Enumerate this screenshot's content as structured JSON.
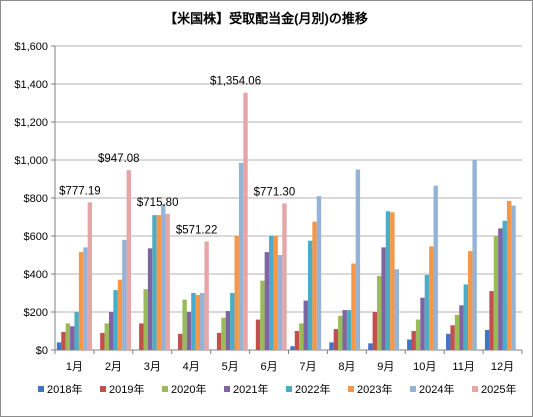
{
  "chart_data": {
    "type": "bar",
    "title": "【米国株】受取配当金(月別)の推移",
    "categories": [
      "1月",
      "2月",
      "3月",
      "4月",
      "5月",
      "6月",
      "7月",
      "8月",
      "9月",
      "10月",
      "11月",
      "12月"
    ],
    "y_ticks": [
      "$0",
      "$200",
      "$400",
      "$600",
      "$800",
      "$1,000",
      "$1,200",
      "$1,400",
      "$1,600"
    ],
    "ylim": [
      0,
      1600
    ],
    "y_step": 200,
    "grid": true,
    "legend_position": "bottom",
    "series": [
      {
        "name": "2018年",
        "color": "#4472c4",
        "values": [
          40,
          0,
          0,
          0,
          0,
          0,
          20,
          40,
          35,
          55,
          85,
          105
        ]
      },
      {
        "name": "2019年",
        "color": "#c0504d",
        "values": [
          95,
          90,
          140,
          85,
          90,
          160,
          100,
          110,
          200,
          100,
          130,
          310
        ]
      },
      {
        "name": "2020年",
        "color": "#9bbb59",
        "values": [
          140,
          140,
          320,
          265,
          170,
          365,
          140,
          180,
          390,
          160,
          185,
          600
        ]
      },
      {
        "name": "2021年",
        "color": "#8064a2",
        "values": [
          125,
          200,
          535,
          200,
          205,
          515,
          260,
          210,
          540,
          275,
          235,
          640
        ]
      },
      {
        "name": "2022年",
        "color": "#4bacc6",
        "values": [
          200,
          315,
          710,
          300,
          300,
          600,
          575,
          210,
          730,
          395,
          345,
          680
        ]
      },
      {
        "name": "2023年",
        "color": "#f79646",
        "values": [
          515,
          370,
          710,
          290,
          600,
          600,
          675,
          455,
          725,
          545,
          520,
          785
        ]
      },
      {
        "name": "2024年",
        "color": "#95b3d7",
        "values": [
          540,
          580,
          770,
          300,
          985,
          500,
          810,
          950,
          425,
          865,
          1000,
          760
        ]
      },
      {
        "name": "2025年",
        "color": "#e6a6a8",
        "values": [
          777.19,
          947.08,
          715.8,
          571.22,
          1354.06,
          771.3,
          null,
          null,
          null,
          null,
          null,
          null
        ]
      }
    ],
    "data_labels": [
      {
        "category_index": 0,
        "series_index": 7,
        "text": "$777.19"
      },
      {
        "category_index": 1,
        "series_index": 7,
        "text": "$947.08"
      },
      {
        "category_index": 2,
        "series_index": 7,
        "text": "$715.80"
      },
      {
        "category_index": 3,
        "series_index": 7,
        "text": "$571.22"
      },
      {
        "category_index": 4,
        "series_index": 7,
        "text": "$1,354.06"
      },
      {
        "category_index": 5,
        "series_index": 7,
        "text": "$771.30"
      }
    ]
  }
}
